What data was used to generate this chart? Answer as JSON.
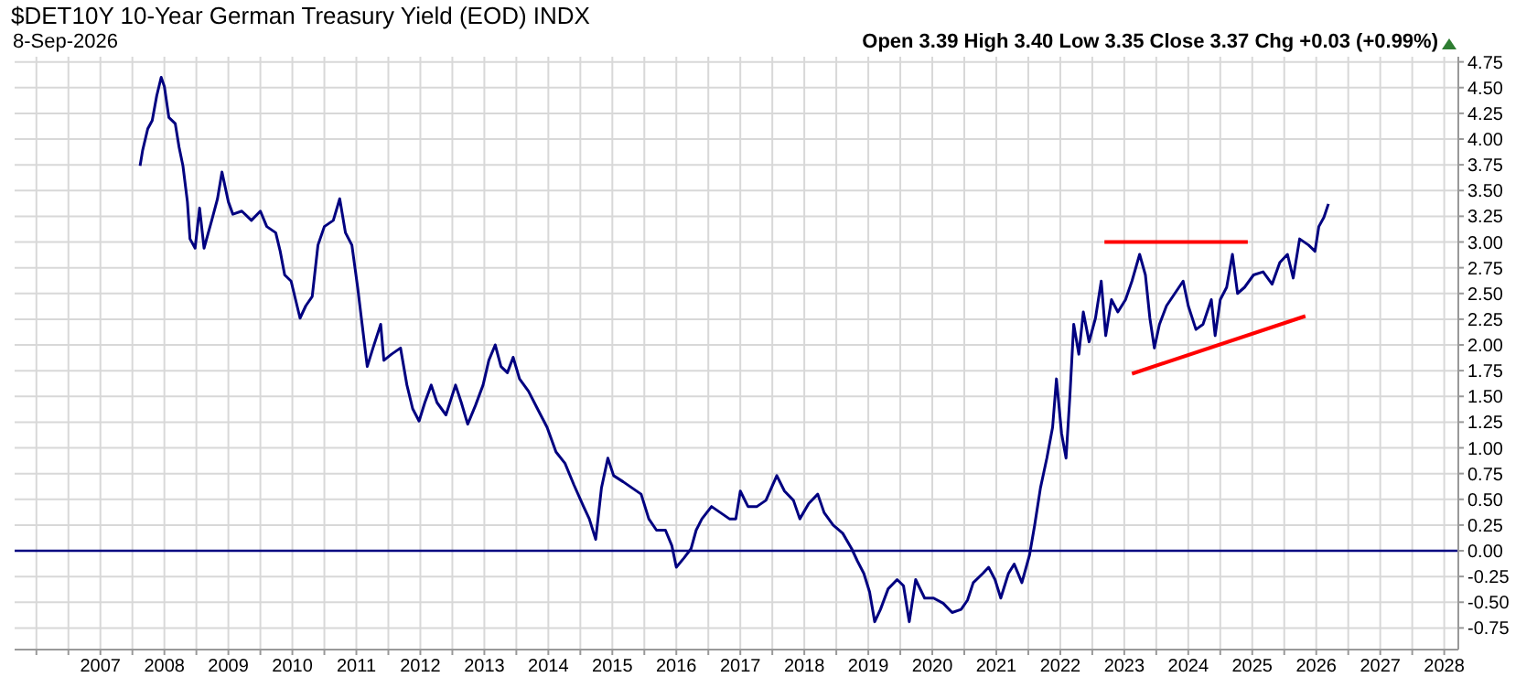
{
  "chart_data": {
    "type": "line",
    "title": "$DET10Y 10-Year German Treasury Yield (EOD) INDX",
    "subtitle": "8-Sep-2026",
    "annotations": [
      "Open 3.39 High 3.40 Low 3.35 Close 3.37 Chg +0.03 (+0.99%)"
    ],
    "series": [
      {
        "color": "#000080",
        "x": [
          2008.12,
          2008.16,
          2008.24,
          2008.31,
          2008.38,
          2008.45,
          2008.5,
          2008.57,
          2008.67,
          2008.73,
          2008.79,
          2008.86,
          2008.9,
          2008.98,
          2009.05,
          2009.12,
          2009.24,
          2009.33,
          2009.4,
          2009.5,
          2009.57,
          2009.71,
          2009.86,
          2010.0,
          2010.1,
          2010.24,
          2010.31,
          2010.38,
          2010.48,
          2010.62,
          2010.71,
          2010.81,
          2010.9,
          2011.0,
          2011.14,
          2011.24,
          2011.33,
          2011.43,
          2011.52,
          2011.59,
          2011.67,
          2011.76,
          2011.88,
          2011.93,
          2012.05,
          2012.19,
          2012.29,
          2012.38,
          2012.48,
          2012.57,
          2012.67,
          2012.76,
          2012.9,
          2013.05,
          2013.14,
          2013.24,
          2013.36,
          2013.48,
          2013.57,
          2013.67,
          2013.76,
          2013.86,
          2013.95,
          2014.05,
          2014.19,
          2014.33,
          2014.48,
          2014.62,
          2014.76,
          2014.9,
          2015.05,
          2015.14,
          2015.24,
          2015.33,
          2015.43,
          2015.52,
          2015.67,
          2015.81,
          2015.95,
          2016.07,
          2016.19,
          2016.33,
          2016.43,
          2016.5,
          2016.62,
          2016.73,
          2016.81,
          2016.9,
          2017.05,
          2017.19,
          2017.33,
          2017.43,
          2017.5,
          2017.62,
          2017.76,
          2017.9,
          2018.07,
          2018.19,
          2018.33,
          2018.43,
          2018.57,
          2018.71,
          2018.81,
          2018.95,
          2019.1,
          2019.24,
          2019.33,
          2019.43,
          2019.52,
          2019.6,
          2019.69,
          2019.81,
          2019.95,
          2020.05,
          2020.14,
          2020.24,
          2020.38,
          2020.52,
          2020.67,
          2020.81,
          2020.95,
          2021.05,
          2021.14,
          2021.29,
          2021.38,
          2021.48,
          2021.57,
          2021.69,
          2021.78,
          2021.9,
          2022.02,
          2022.1,
          2022.19,
          2022.29,
          2022.38,
          2022.44,
          2022.52,
          2022.59,
          2022.65,
          2022.71,
          2022.79,
          2022.86,
          2022.95,
          2023.05,
          2023.14,
          2023.21,
          2023.3,
          2023.4,
          2023.52,
          2023.62,
          2023.74,
          2023.83,
          2023.9,
          2023.97,
          2024.05,
          2024.16,
          2024.29,
          2024.42,
          2024.5,
          2024.62,
          2024.73,
          2024.86,
          2024.92,
          2025.0,
          2025.1,
          2025.19,
          2025.27,
          2025.38,
          2025.52,
          2025.67,
          2025.81,
          2025.93,
          2026.05,
          2026.14,
          2026.24,
          2026.38,
          2026.48,
          2026.54,
          2026.62,
          2026.69
        ],
        "values": [
          3.74,
          3.89,
          4.1,
          4.18,
          4.42,
          4.6,
          4.51,
          4.21,
          4.15,
          3.92,
          3.74,
          3.39,
          3.03,
          2.94,
          3.33,
          2.94,
          3.21,
          3.42,
          3.68,
          3.39,
          3.27,
          3.3,
          3.21,
          3.3,
          3.15,
          3.09,
          2.91,
          2.68,
          2.62,
          2.26,
          2.38,
          2.47,
          2.97,
          3.15,
          3.21,
          3.42,
          3.09,
          2.97,
          2.56,
          2.2,
          1.79,
          1.97,
          2.2,
          1.85,
          1.91,
          1.97,
          1.61,
          1.38,
          1.26,
          1.44,
          1.61,
          1.44,
          1.32,
          1.61,
          1.44,
          1.23,
          1.41,
          1.61,
          1.85,
          2.0,
          1.79,
          1.73,
          1.88,
          1.67,
          1.55,
          1.38,
          1.2,
          0.96,
          0.85,
          0.64,
          0.43,
          0.31,
          0.11,
          0.61,
          0.9,
          0.73,
          0.67,
          0.61,
          0.55,
          0.31,
          0.2,
          0.2,
          0.05,
          -0.16,
          -0.07,
          0.02,
          0.2,
          0.31,
          0.43,
          0.37,
          0.31,
          0.31,
          0.58,
          0.43,
          0.43,
          0.49,
          0.73,
          0.58,
          0.49,
          0.31,
          0.46,
          0.55,
          0.37,
          0.25,
          0.17,
          0.02,
          -0.1,
          -0.22,
          -0.4,
          -0.69,
          -0.57,
          -0.37,
          -0.28,
          -0.34,
          -0.69,
          -0.28,
          -0.46,
          -0.46,
          -0.51,
          -0.6,
          -0.57,
          -0.48,
          -0.31,
          -0.22,
          -0.16,
          -0.28,
          -0.46,
          -0.22,
          -0.13,
          -0.31,
          -0.04,
          0.25,
          0.61,
          0.9,
          1.2,
          1.67,
          1.14,
          0.9,
          1.5,
          2.2,
          1.91,
          2.32,
          2.03,
          2.26,
          2.62,
          2.09,
          2.44,
          2.32,
          2.44,
          2.62,
          2.88,
          2.68,
          2.26,
          1.97,
          2.2,
          2.38,
          2.5,
          2.62,
          2.38,
          2.15,
          2.2,
          2.44,
          2.09,
          2.44,
          2.56,
          2.88,
          2.5,
          2.56,
          2.68,
          2.71,
          2.59,
          2.8,
          2.88,
          2.65,
          3.03,
          2.97,
          2.91,
          3.15,
          3.24,
          3.37
        ]
      },
      {
        "color": "#ff0000",
        "x": [
          2023.19,
          2025.43
        ],
        "values": [
          3.0,
          3.0
        ]
      },
      {
        "color": "#ff0000",
        "x": [
          2023.62,
          2026.33
        ],
        "values": [
          1.72,
          2.28
        ]
      }
    ],
    "ref_lines": [
      {
        "axis": "y",
        "value": 0,
        "color": "#000080"
      }
    ],
    "xlim": [
      2006.16,
      2028.72
    ],
    "xticks": [
      {
        "value": 2006.5,
        "label": null
      },
      {
        "value": 2007,
        "label": null
      },
      {
        "value": 2007.5,
        "label": "2007"
      },
      {
        "value": 2008,
        "label": null
      },
      {
        "value": 2008.5,
        "label": "2008"
      },
      {
        "value": 2009,
        "label": null
      },
      {
        "value": 2009.5,
        "label": "2009"
      },
      {
        "value": 2010,
        "label": null
      },
      {
        "value": 2010.5,
        "label": "2010"
      },
      {
        "value": 2011,
        "label": null
      },
      {
        "value": 2011.5,
        "label": "2011"
      },
      {
        "value": 2012,
        "label": null
      },
      {
        "value": 2012.5,
        "label": "2012"
      },
      {
        "value": 2013,
        "label": null
      },
      {
        "value": 2013.5,
        "label": "2013"
      },
      {
        "value": 2014,
        "label": null
      },
      {
        "value": 2014.5,
        "label": "2014"
      },
      {
        "value": 2015,
        "label": null
      },
      {
        "value": 2015.5,
        "label": "2015"
      },
      {
        "value": 2016,
        "label": null
      },
      {
        "value": 2016.5,
        "label": "2016"
      },
      {
        "value": 2017,
        "label": null
      },
      {
        "value": 2017.5,
        "label": "2017"
      },
      {
        "value": 2018,
        "label": null
      },
      {
        "value": 2018.5,
        "label": "2018"
      },
      {
        "value": 2019,
        "label": null
      },
      {
        "value": 2019.5,
        "label": "2019"
      },
      {
        "value": 2020,
        "label": null
      },
      {
        "value": 2020.5,
        "label": "2020"
      },
      {
        "value": 2021,
        "label": null
      },
      {
        "value": 2021.5,
        "label": "2021"
      },
      {
        "value": 2022,
        "label": null
      },
      {
        "value": 2022.5,
        "label": "2022"
      },
      {
        "value": 2023,
        "label": null
      },
      {
        "value": 2023.5,
        "label": "2023"
      },
      {
        "value": 2024,
        "label": null
      },
      {
        "value": 2024.5,
        "label": "2024"
      },
      {
        "value": 2025,
        "label": null
      },
      {
        "value": 2025.5,
        "label": "2025"
      },
      {
        "value": 2026,
        "label": null
      },
      {
        "value": 2026.5,
        "label": "2026"
      },
      {
        "value": 2027,
        "label": null
      },
      {
        "value": 2027.5,
        "label": "2027"
      },
      {
        "value": 2028,
        "label": null
      },
      {
        "value": 2028.5,
        "label": "2028"
      }
    ],
    "ylim": [
      -0.96,
      4.8
    ],
    "yticks": [
      {
        "value": -0.75,
        "label": "-0.75"
      },
      {
        "value": -0.5,
        "label": "-0.50"
      },
      {
        "value": -0.25,
        "label": "-0.25"
      },
      {
        "value": 0,
        "label": "0.00"
      },
      0.25,
      {
        "value": 0.5,
        "label": "0.50"
      },
      0.75,
      {
        "value": 1,
        "label": "1.00"
      },
      1.25,
      {
        "value": 1.5,
        "label": "1.50"
      },
      1.75,
      {
        "value": 2,
        "label": "2.00"
      },
      2.25,
      {
        "value": 2.5,
        "label": "2.50"
      },
      2.75,
      {
        "value": 3,
        "label": "3.00"
      },
      3.25,
      {
        "value": 3.5,
        "label": "3.50"
      },
      3.75,
      {
        "value": 4,
        "label": "4.00"
      },
      4.25,
      {
        "value": 4.5,
        "label": "4.50"
      },
      4.75
    ],
    "grid": true,
    "marker": "none",
    "line_style": "solid"
  }
}
